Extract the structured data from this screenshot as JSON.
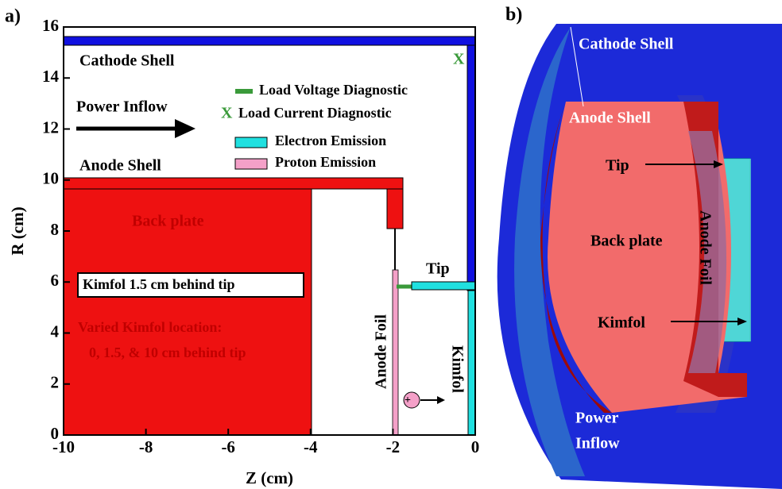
{
  "panel_a": {
    "label": "a)",
    "x_label": "Z (cm)",
    "y_label": "R (cm)",
    "xlim": [
      -10,
      0
    ],
    "ylim": [
      0,
      16
    ],
    "xticks": [
      -10,
      -8,
      -6,
      -4,
      -2,
      0
    ],
    "yticks": [
      0,
      2,
      4,
      6,
      8,
      10,
      12,
      14,
      16
    ],
    "regions": {
      "cathode_shell": "Cathode Shell",
      "power_inflow": "Power Inflow",
      "anode_shell": "Anode Shell",
      "back_plate": "Back plate",
      "kimfol_note": "Kimfol 1.5 cm behind tip",
      "varied_1": "Varied Kimfol location:",
      "varied_2": "0, 1.5, & 10 cm behind tip",
      "tip": "Tip",
      "anode_foil": "Anode Foil",
      "kimfol": "Kimfol",
      "current_marker": "X",
      "proton": "+"
    },
    "legend": [
      "Load Voltage Diagnostic",
      "Load Current Diagnostic",
      "Electron Emission",
      "Proton Emission"
    ],
    "legend_x_symbol": "X"
  },
  "panel_b": {
    "label": "b)",
    "cathode_shell": "Cathode Shell",
    "anode_shell": "Anode Shell",
    "tip": "Tip",
    "back_plate": "Back plate",
    "anode_foil": "Anode Foil",
    "kimfol": "Kimfol",
    "power_inflow_1": "Power",
    "power_inflow_2": "Inflow"
  }
}
